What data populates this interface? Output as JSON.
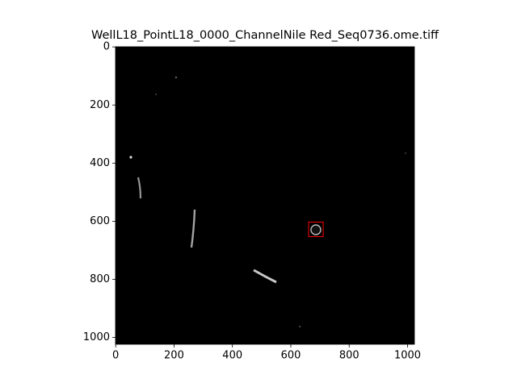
{
  "chart_data": {
    "type": "image",
    "title": "WellL18_PointL18_0000_ChannelNile Red_Seq0736.ome.tiff",
    "xlim": [
      -0.5,
      1023.5
    ],
    "ylim": [
      1023.5,
      -0.5
    ],
    "xticks": [
      0,
      200,
      400,
      600,
      800,
      1000
    ],
    "yticks": [
      0,
      200,
      400,
      600,
      800,
      1000
    ],
    "rectangles": [
      {
        "x0": 661,
        "y0": 603,
        "x1": 711,
        "y1": 653,
        "color": "#ff0000"
      }
    ]
  }
}
